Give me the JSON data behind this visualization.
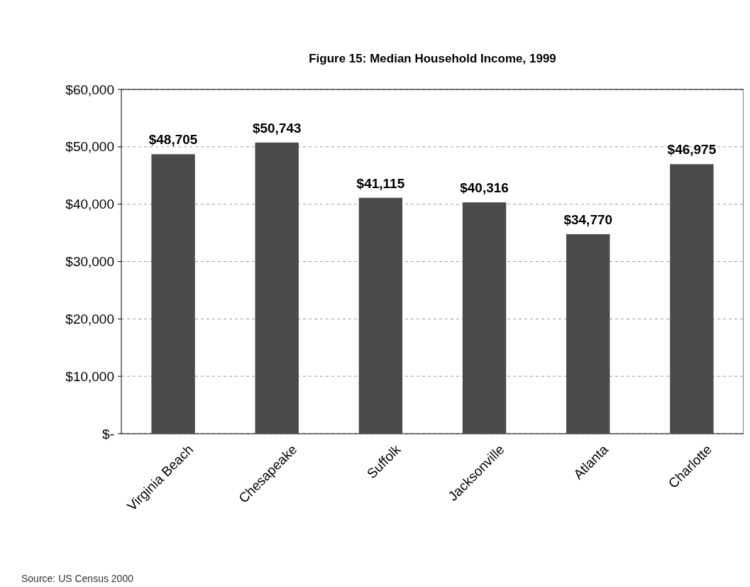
{
  "chart_data": {
    "type": "bar",
    "title": "Figure 15: Median Household Income, 1999",
    "categories": [
      "Virginia Beach",
      "Chesapeake",
      "Suffolk",
      "Jacksonville",
      "Atlanta",
      "Charlotte"
    ],
    "values": [
      48705,
      50743,
      41115,
      40316,
      34770,
      46975
    ],
    "value_labels": [
      "$48,705",
      "$50,743",
      "$41,115",
      "$40,316",
      "$34,770",
      "$46,975"
    ],
    "color": "#4a4a4a",
    "ylim": [
      0,
      60000
    ],
    "yticks": [
      {
        "value": 0,
        "label": "$-"
      },
      {
        "value": 10000,
        "label": "$10,000"
      },
      {
        "value": 20000,
        "label": "$20,000"
      },
      {
        "value": 30000,
        "label": "$30,000"
      },
      {
        "value": 40000,
        "label": "$40,000"
      },
      {
        "value": 50000,
        "label": "$50,000"
      },
      {
        "value": 60000,
        "label": "$60,000"
      }
    ],
    "grid": "y",
    "annotations": [
      "Source: US Census 2000"
    ]
  }
}
